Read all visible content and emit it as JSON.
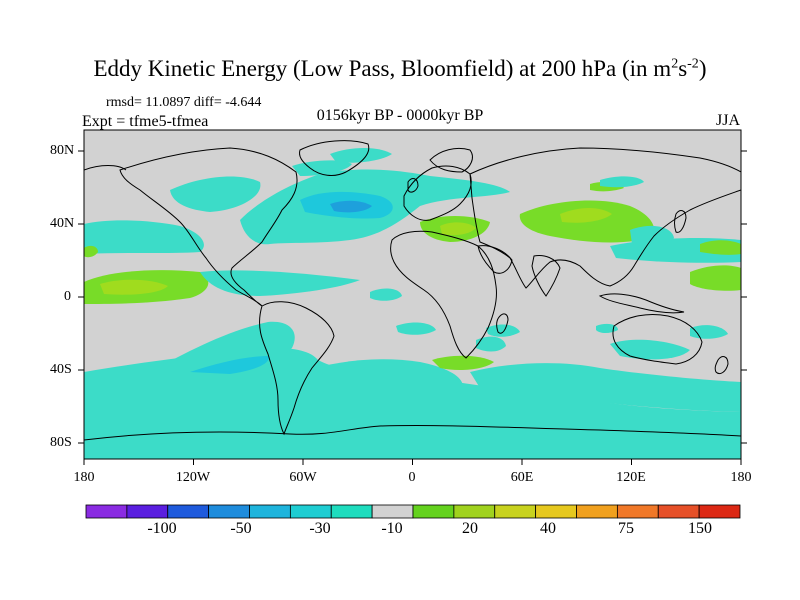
{
  "title": {
    "main": "Eddy Kinetic Energy (Low Pass, Bloomfield) at 200 hPa (in m",
    "sup1": "2",
    "mid": "s",
    "sup2": "-2",
    "end": ")"
  },
  "stats_text": "rmsd= 11.0897 diff= -4.644",
  "experiment_text": "Expt = tfme5-tfmea",
  "period_text": "0156kyr BP - 0000kyr BP",
  "season_text": "JJA",
  "lat_labels": [
    "80N",
    "40N",
    "0",
    "40S",
    "80S"
  ],
  "lon_labels": [
    "180",
    "120W",
    "60W",
    "0",
    "60E",
    "120E",
    "180"
  ],
  "colorbar": {
    "colors": [
      "#8a2be2",
      "#5a1ee0",
      "#1e5adc",
      "#1e8cdc",
      "#1eb4dc",
      "#1ecdd2",
      "#1edcbe",
      "#d2d2d2",
      "#64d21e",
      "#a0d21e",
      "#c8d21e",
      "#e6c81e",
      "#f0a01e",
      "#f07828",
      "#e65028",
      "#dc2814"
    ],
    "labels": [
      "-100",
      "-50",
      "-30",
      "-10",
      "20",
      "40",
      "75",
      "150"
    ]
  },
  "palette": {
    "background": "#d2d2d2",
    "negative_light": "#3cdcc8",
    "negative_mid": "#1ec8dc",
    "negative_strong": "#1ea0dc",
    "positive_light": "#78dc28",
    "positive_mid": "#a0dc1e",
    "coastline": "#000000"
  }
}
